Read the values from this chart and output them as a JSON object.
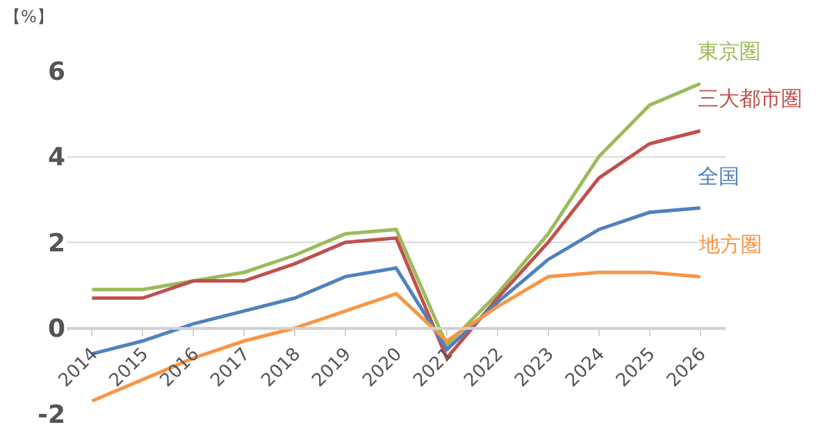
{
  "chart_data": {
    "type": "line",
    "ylabel": "【%】",
    "categories": [
      "2014",
      "2015",
      "2016",
      "2017",
      "2018",
      "2019",
      "2020",
      "2021",
      "2022",
      "2023",
      "2024",
      "2025",
      "2026"
    ],
    "series": [
      {
        "name": "東京圏",
        "color": "#9bbb59",
        "values": [
          0.9,
          0.9,
          1.1,
          1.3,
          1.7,
          2.2,
          2.3,
          -0.4,
          0.8,
          2.2,
          4.0,
          5.2,
          5.7
        ]
      },
      {
        "name": "三大都市圏",
        "color": "#c0504d",
        "values": [
          0.7,
          0.7,
          1.1,
          1.1,
          1.5,
          2.0,
          2.1,
          -0.7,
          0.7,
          2.0,
          3.5,
          4.3,
          4.6
        ]
      },
      {
        "name": "全国",
        "color": "#4f81bd",
        "values": [
          -0.6,
          -0.3,
          0.1,
          0.4,
          0.7,
          1.2,
          1.4,
          -0.5,
          0.6,
          1.6,
          2.3,
          2.7,
          2.8
        ]
      },
      {
        "name": "地方圏",
        "color": "#f79646",
        "values": [
          -1.7,
          -1.2,
          -0.7,
          -0.3,
          0.0,
          0.4,
          0.8,
          -0.3,
          0.5,
          1.2,
          1.3,
          1.3,
          1.2
        ]
      }
    ],
    "ylim": [
      -2,
      6
    ],
    "yticks": [
      -2,
      0,
      2,
      4,
      6
    ],
    "grid": "y",
    "legend": false,
    "marker": "none",
    "line_style": "solid"
  }
}
